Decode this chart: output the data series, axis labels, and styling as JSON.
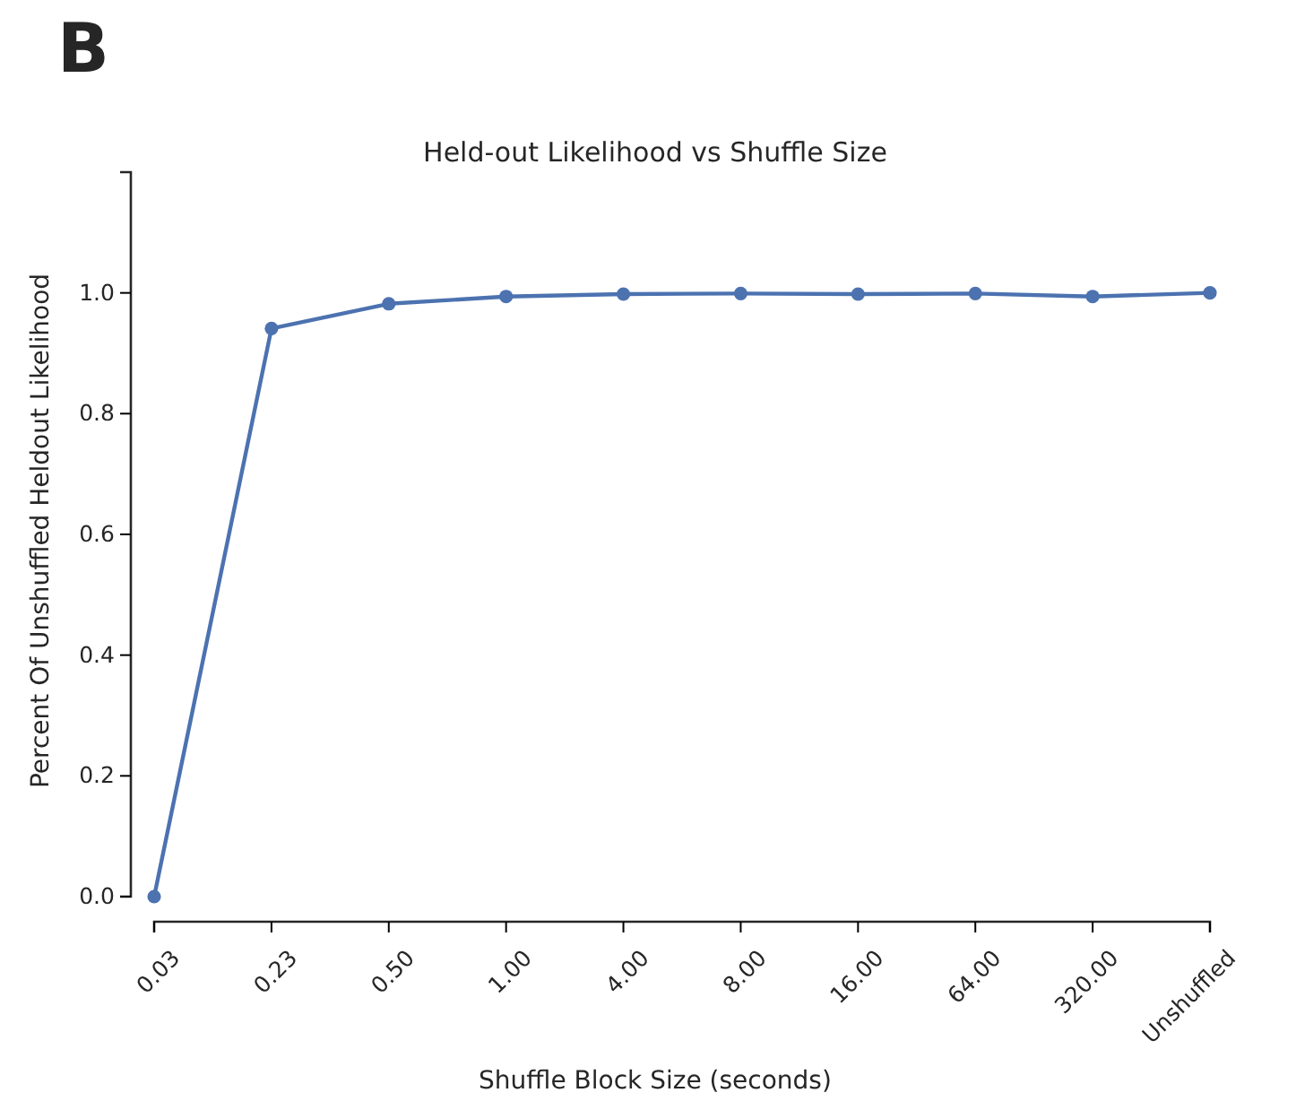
{
  "chart_data": {
    "type": "line",
    "title": "Held-out Likelihood vs Shuffle Size",
    "xlabel": "Shuffle Block Size (seconds)",
    "ylabel": "Percent Of Unshuffled Heldout Likelihood",
    "annotations": [
      "B"
    ],
    "categories": [
      "0.03",
      "0.23",
      "0.50",
      "1.00",
      "4.00",
      "8.00",
      "16.00",
      "64.00",
      "320.00",
      "Unshuffled"
    ],
    "series": [
      {
        "color": "#4c72b0",
        "values": [
          0.0,
          0.941,
          0.982,
          0.994,
          0.998,
          0.999,
          0.998,
          0.999,
          0.994,
          1.0
        ]
      }
    ],
    "ylim": [
      0,
      1.2
    ],
    "yticks": [
      {
        "value": 0,
        "label": "0.0"
      },
      0.2,
      0.4,
      0.6,
      0.8,
      {
        "value": 1,
        "label": "1.0"
      }
    ],
    "grid": false,
    "marker": "circle",
    "line_style": "solid"
  }
}
